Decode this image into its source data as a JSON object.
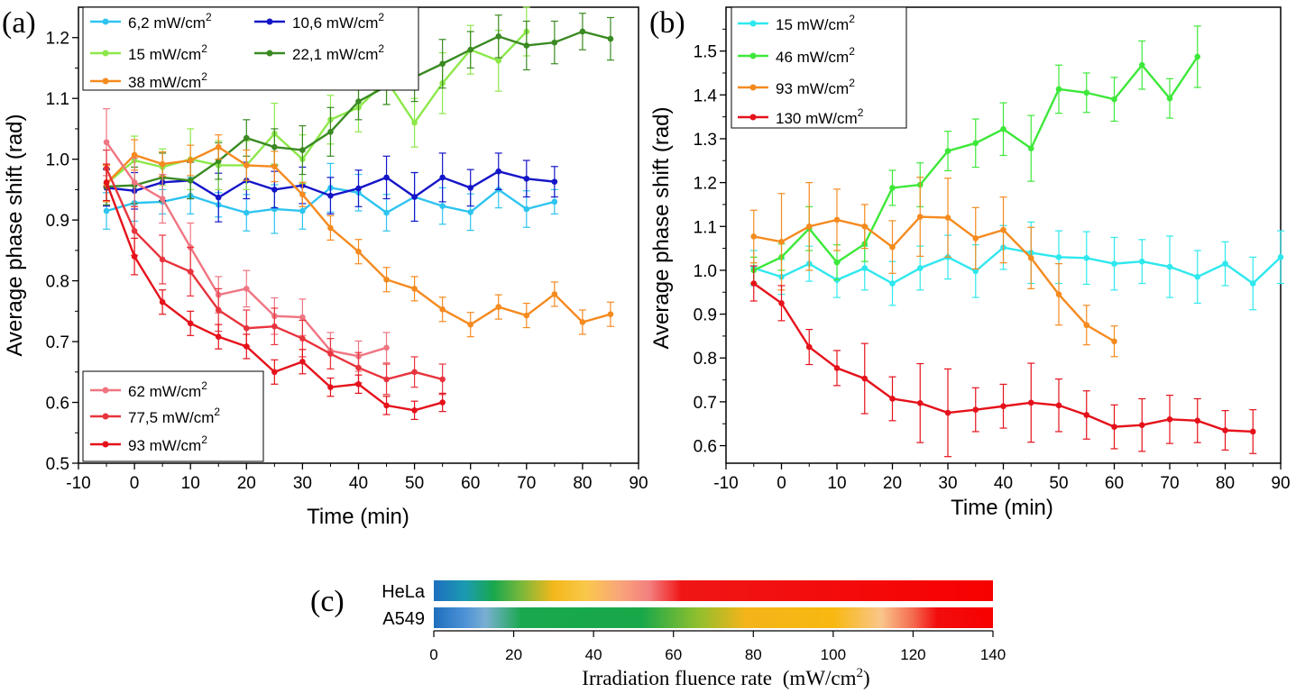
{
  "chart_data": [
    {
      "type": "line",
      "panel_label": "(a)",
      "xlabel": "Time (min)",
      "ylabel": "Average phase shift (rad)",
      "xlim": [
        -10,
        90
      ],
      "ylim": [
        0.5,
        1.25
      ],
      "xticks": [
        "-10",
        "0",
        "10",
        "20",
        "30",
        "40",
        "50",
        "60",
        "70",
        "80",
        "90"
      ],
      "yticks": [
        "0.5",
        "0.6",
        "0.7",
        "0.8",
        "0.9",
        "1.0",
        "1.1",
        "1.2"
      ],
      "series": [
        {
          "name": "6,2 mW/cm",
          "sup": "2",
          "color": "#2ec4f0",
          "x": [
            -5,
            0,
            5,
            10,
            15,
            20,
            25,
            30,
            35,
            40,
            45,
            50,
            55,
            60,
            65,
            70,
            75
          ],
          "y": [
            0.915,
            0.928,
            0.93,
            0.94,
            0.925,
            0.912,
            0.918,
            0.915,
            0.953,
            0.945,
            0.912,
            0.938,
            0.923,
            0.913,
            0.95,
            0.918,
            0.93
          ],
          "err": [
            0.03,
            0.03,
            0.02,
            0.03,
            0.02,
            0.03,
            0.04,
            0.03,
            0.04,
            0.03,
            0.03,
            0.04,
            0.03,
            0.03,
            0.03,
            0.03,
            0.02
          ]
        },
        {
          "name": "10,6 mW/cm",
          "sup": "2",
          "color": "#1515c8",
          "x": [
            -5,
            0,
            5,
            10,
            15,
            20,
            25,
            30,
            35,
            40,
            45,
            50,
            55,
            60,
            65,
            70,
            75
          ],
          "y": [
            0.953,
            0.948,
            0.962,
            0.965,
            0.937,
            0.965,
            0.95,
            0.957,
            0.94,
            0.952,
            0.97,
            0.938,
            0.97,
            0.953,
            0.98,
            0.968,
            0.963
          ],
          "err": [
            0.03,
            0.03,
            0.03,
            0.03,
            0.04,
            0.03,
            0.03,
            0.03,
            0.03,
            0.03,
            0.035,
            0.04,
            0.04,
            0.03,
            0.03,
            0.03,
            0.025
          ]
        },
        {
          "name": "15 mW/cm",
          "sup": "2",
          "color": "#8de84a",
          "x": [
            -5,
            0,
            5,
            10,
            15,
            20,
            25,
            30,
            35,
            40,
            45,
            50,
            55,
            60,
            65,
            70
          ],
          "y": [
            0.96,
            0.998,
            0.987,
            1.0,
            0.99,
            0.99,
            1.042,
            1.0,
            1.065,
            1.085,
            1.13,
            1.06,
            1.125,
            1.18,
            1.162,
            1.21
          ],
          "err": [
            0.03,
            0.04,
            0.03,
            0.05,
            0.04,
            0.04,
            0.05,
            0.04,
            0.04,
            0.04,
            0.04,
            0.04,
            0.05,
            0.04,
            0.05,
            0.04
          ]
        },
        {
          "name": "22,1 mW/cm",
          "sup": "2",
          "color": "#3a8a22",
          "x": [
            -5,
            0,
            5,
            10,
            15,
            20,
            25,
            30,
            35,
            40,
            45,
            50,
            55,
            60,
            65,
            70,
            75,
            80,
            85
          ],
          "y": [
            0.955,
            0.957,
            0.97,
            0.965,
            0.997,
            1.035,
            1.02,
            1.015,
            1.045,
            1.095,
            1.12,
            1.135,
            1.157,
            1.18,
            1.202,
            1.187,
            1.192,
            1.21,
            1.198
          ],
          "err": [
            0.03,
            0.03,
            0.04,
            0.03,
            0.03,
            0.03,
            0.03,
            0.04,
            0.04,
            0.03,
            0.03,
            0.04,
            0.04,
            0.03,
            0.035,
            0.04,
            0.035,
            0.03,
            0.035
          ]
        },
        {
          "name": "38 mW/cm",
          "sup": "2",
          "color": "#f58a1f",
          "x": [
            -5,
            0,
            5,
            10,
            15,
            20,
            25,
            30,
            35,
            40,
            45,
            50,
            55,
            60,
            65,
            70,
            75,
            80,
            85
          ],
          "y": [
            0.96,
            1.007,
            0.992,
            0.998,
            1.02,
            0.99,
            0.988,
            0.942,
            0.887,
            0.848,
            0.802,
            0.787,
            0.753,
            0.728,
            0.757,
            0.743,
            0.778,
            0.732,
            0.745
          ],
          "err": [
            0.03,
            0.025,
            0.02,
            0.025,
            0.02,
            0.025,
            0.025,
            0.02,
            0.02,
            0.02,
            0.02,
            0.02,
            0.02,
            0.02,
            0.02,
            0.02,
            0.02,
            0.02,
            0.02
          ]
        },
        {
          "name": "62 mW/cm",
          "sup": "2",
          "color": "#f07582",
          "x": [
            -5,
            0,
            5,
            10,
            15,
            20,
            25,
            30,
            35,
            40,
            45
          ],
          "y": [
            1.028,
            0.962,
            0.935,
            0.855,
            0.777,
            0.787,
            0.742,
            0.74,
            0.685,
            0.676,
            0.69
          ],
          "err": [
            0.055,
            0.04,
            0.04,
            0.04,
            0.03,
            0.03,
            0.03,
            0.03,
            0.03,
            0.025,
            0.025
          ]
        },
        {
          "name": "77,5 mW/cm",
          "sup": "2",
          "color": "#e8343d",
          "x": [
            -5,
            0,
            5,
            10,
            15,
            20,
            25,
            30,
            35,
            40,
            45,
            50,
            55
          ],
          "y": [
            0.985,
            0.882,
            0.835,
            0.815,
            0.752,
            0.722,
            0.725,
            0.705,
            0.68,
            0.657,
            0.638,
            0.65,
            0.638
          ],
          "err": [
            0.03,
            0.04,
            0.04,
            0.04,
            0.035,
            0.03,
            0.03,
            0.03,
            0.025,
            0.025,
            0.025,
            0.025,
            0.025
          ]
        },
        {
          "name": "93 mW/cm",
          "sup": "2",
          "color": "#e5111a",
          "x": [
            -5,
            0,
            5,
            10,
            15,
            20,
            25,
            30,
            35,
            40,
            45,
            50,
            55
          ],
          "y": [
            0.962,
            0.84,
            0.765,
            0.73,
            0.708,
            0.692,
            0.65,
            0.667,
            0.625,
            0.63,
            0.595,
            0.587,
            0.6
          ],
          "err": [
            0.03,
            0.03,
            0.02,
            0.02,
            0.02,
            0.02,
            0.02,
            0.02,
            0.015,
            0.015,
            0.015,
            0.015,
            0.015
          ]
        }
      ]
    },
    {
      "type": "line",
      "panel_label": "(b)",
      "xlabel": "Time (min)",
      "ylabel": "Average phase shift (rad)",
      "xlim": [
        -10,
        90
      ],
      "ylim": [
        0.56,
        1.6
      ],
      "xticks": [
        "-10",
        "0",
        "10",
        "20",
        "30",
        "40",
        "50",
        "60",
        "70",
        "80",
        "90"
      ],
      "yticks": [
        "0.6",
        "0.7",
        "0.8",
        "0.9",
        "1.0",
        "1.1",
        "1.2",
        "1.3",
        "1.4",
        "1.5"
      ],
      "series": [
        {
          "name": "15 mW/cm",
          "sup": "2",
          "color": "#2fe8ee",
          "x": [
            -5,
            0,
            5,
            10,
            15,
            20,
            25,
            30,
            35,
            40,
            45,
            50,
            55,
            60,
            65,
            70,
            75,
            80,
            85,
            90
          ],
          "y": [
            1.005,
            0.985,
            1.015,
            0.978,
            1.005,
            0.97,
            1.005,
            1.03,
            0.998,
            1.052,
            1.04,
            1.03,
            1.028,
            1.015,
            1.02,
            1.008,
            0.985,
            1.015,
            0.97,
            1.03
          ],
          "err": [
            0.04,
            0.04,
            0.04,
            0.04,
            0.05,
            0.05,
            0.05,
            0.05,
            0.06,
            0.05,
            0.07,
            0.06,
            0.06,
            0.06,
            0.05,
            0.07,
            0.06,
            0.05,
            0.06,
            0.06
          ]
        },
        {
          "name": "46 mW/cm",
          "sup": "2",
          "color": "#3ee83a",
          "x": [
            -5,
            0,
            5,
            10,
            15,
            20,
            25,
            30,
            35,
            40,
            45,
            50,
            55,
            60,
            65,
            70,
            75
          ],
          "y": [
            1.0,
            1.03,
            1.095,
            1.018,
            1.06,
            1.188,
            1.195,
            1.272,
            1.29,
            1.322,
            1.278,
            1.413,
            1.405,
            1.39,
            1.468,
            1.392,
            1.487
          ],
          "err": [
            0.03,
            0.03,
            0.05,
            0.04,
            0.04,
            0.04,
            0.05,
            0.045,
            0.055,
            0.06,
            0.075,
            0.055,
            0.045,
            0.05,
            0.055,
            0.045,
            0.07
          ]
        },
        {
          "name": "93 mW/cm",
          "sup": "2",
          "color": "#f58a1f",
          "x": [
            -5,
            0,
            5,
            10,
            15,
            20,
            25,
            30,
            35,
            40,
            45,
            50,
            55,
            60
          ],
          "y": [
            1.077,
            1.065,
            1.1,
            1.115,
            1.1,
            1.053,
            1.122,
            1.12,
            1.073,
            1.092,
            1.028,
            0.945,
            0.875,
            0.838
          ],
          "err": [
            0.06,
            0.11,
            0.1,
            0.07,
            0.05,
            0.06,
            0.09,
            0.09,
            0.07,
            0.075,
            0.07,
            0.07,
            0.045,
            0.035
          ]
        },
        {
          "name": "130 mW/cm",
          "sup": "2",
          "color": "#e5111a",
          "x": [
            -5,
            0,
            5,
            10,
            15,
            20,
            25,
            30,
            35,
            40,
            45,
            50,
            55,
            60,
            65,
            70,
            75,
            80,
            85
          ],
          "y": [
            0.97,
            0.925,
            0.825,
            0.777,
            0.753,
            0.707,
            0.697,
            0.675,
            0.682,
            0.69,
            0.698,
            0.692,
            0.67,
            0.643,
            0.647,
            0.66,
            0.657,
            0.635,
            0.632
          ],
          "err": [
            0.04,
            0.04,
            0.04,
            0.04,
            0.08,
            0.05,
            0.09,
            0.1,
            0.05,
            0.05,
            0.09,
            0.06,
            0.055,
            0.05,
            0.06,
            0.055,
            0.05,
            0.045,
            0.05
          ]
        }
      ]
    }
  ],
  "panel_c": {
    "label": "(c)",
    "rows": [
      {
        "name": "HeLa",
        "stops": [
          [
            0,
            "#1e6fbf"
          ],
          [
            8,
            "#1a9bb0"
          ],
          [
            15,
            "#19a84d"
          ],
          [
            22,
            "#7ab83a"
          ],
          [
            30,
            "#f4b81c"
          ],
          [
            38,
            "#f9c84a"
          ],
          [
            46,
            "#f9a878"
          ],
          [
            54,
            "#f37f7f"
          ],
          [
            62,
            "#f01616"
          ],
          [
            140,
            "#f70000"
          ]
        ]
      },
      {
        "name": "A549",
        "stops": [
          [
            0,
            "#1e6fbf"
          ],
          [
            8,
            "#4f93d6"
          ],
          [
            13,
            "#7aafd3"
          ],
          [
            22,
            "#19a84d"
          ],
          [
            52,
            "#18a84a"
          ],
          [
            66,
            "#8fbf2e"
          ],
          [
            78,
            "#f4b41a"
          ],
          [
            100,
            "#f8b810"
          ],
          [
            112,
            "#f9c68a"
          ],
          [
            120,
            "#f46a50"
          ],
          [
            126,
            "#f20d0d"
          ],
          [
            140,
            "#f70000"
          ]
        ]
      }
    ],
    "ticks": [
      "0",
      "20",
      "40",
      "60",
      "80",
      "100",
      "120",
      "140"
    ],
    "xlim": [
      0,
      140
    ],
    "xlabel": "Irradiation fluence rate",
    "xlabel_unit": "(mW/cm",
    "xlabel_unit_sup": "2",
    "xlabel_unit_end": ")"
  }
}
